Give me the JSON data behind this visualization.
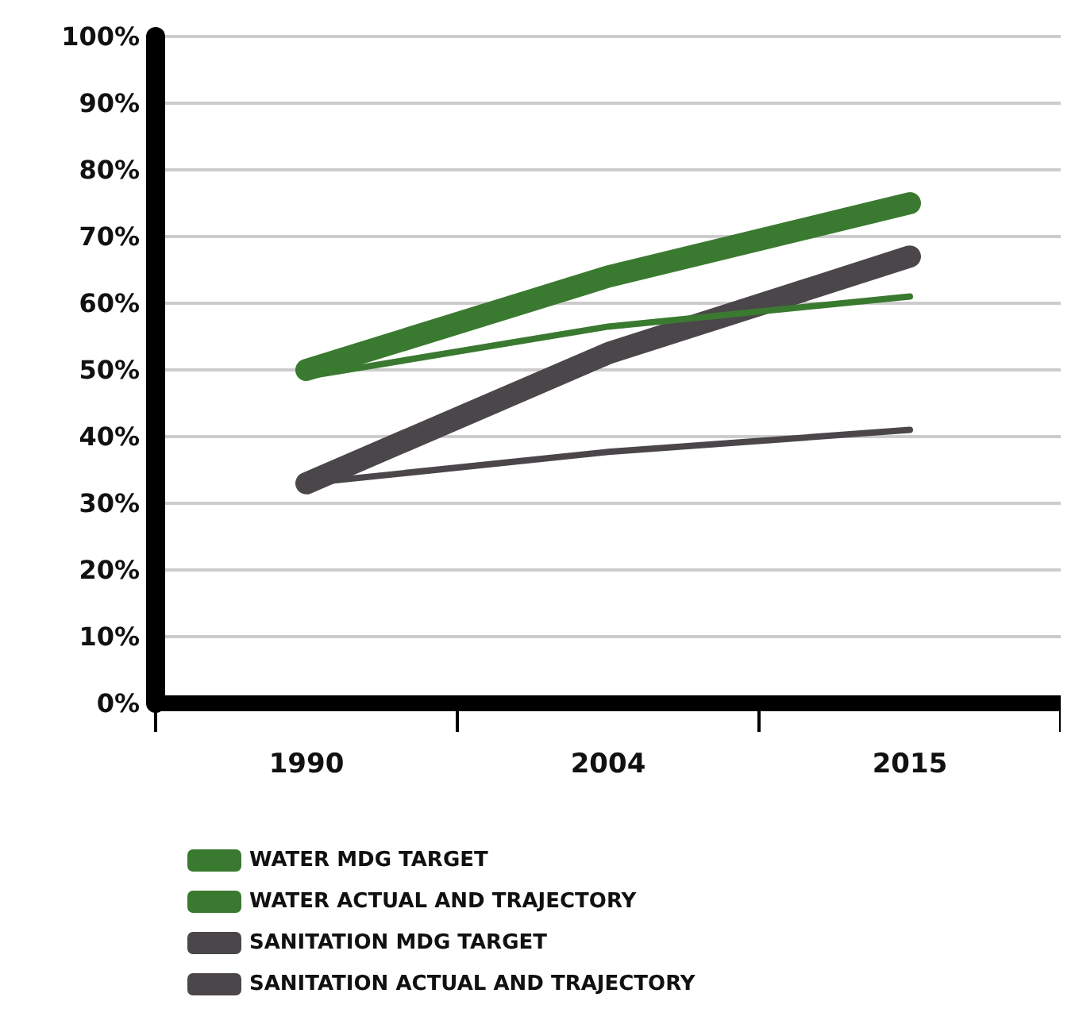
{
  "chart_data": {
    "type": "line",
    "categories": [
      "1990",
      "2004",
      "2015"
    ],
    "series": [
      {
        "name": "WATER MDG TARGET",
        "color": "#3a7a30",
        "values": [
          50,
          64,
          75
        ]
      },
      {
        "name": "WATER ACTUAL AND TRAJECTORY",
        "color": "#3a7a30",
        "values": [
          49,
          56.5,
          61
        ]
      },
      {
        "name": "SANITATION MDG TARGET",
        "color": "#4a464a",
        "values": [
          33,
          52.5,
          67
        ]
      },
      {
        "name": "SANITATION ACTUAL AND TRAJECTORY",
        "color": "#4a464a",
        "values": [
          33,
          37.7,
          41
        ]
      }
    ],
    "ylim": [
      0,
      100
    ],
    "yticks": [
      {
        "value": 0,
        "label": "0%"
      },
      {
        "value": 10,
        "label": "10%"
      },
      {
        "value": 20,
        "label": "20%"
      },
      {
        "value": 30,
        "label": "30%"
      },
      {
        "value": 40,
        "label": "40%"
      },
      {
        "value": 50,
        "label": "50%"
      },
      {
        "value": 60,
        "label": "60%"
      },
      {
        "value": 70,
        "label": "70%"
      },
      {
        "value": 80,
        "label": "80%"
      },
      {
        "value": 90,
        "label": "90%"
      },
      {
        "value": 100,
        "label": "100%"
      }
    ],
    "grid": "y",
    "legend": "bottom left",
    "marker": "none",
    "line_style": "solid"
  }
}
